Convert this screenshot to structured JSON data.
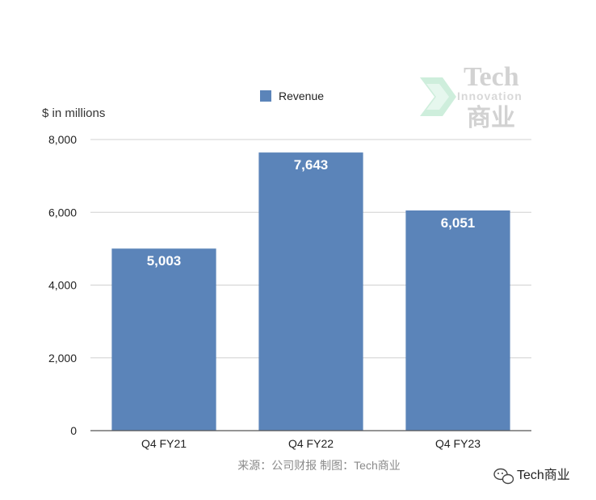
{
  "chart_data": {
    "type": "bar",
    "categories": [
      "Q4 FY21",
      "Q4 FY22",
      "Q4 FY23"
    ],
    "series": [
      {
        "name": "Revenue",
        "values": [
          5003,
          7643,
          6051
        ],
        "color": "#5b84b9"
      }
    ],
    "data_labels": [
      "5,003",
      "7,643",
      "6,051"
    ],
    "y_unit_label": "$ in millions",
    "ylim": [
      0,
      8000
    ],
    "y_ticks": [
      0,
      2000,
      4000,
      6000,
      8000
    ],
    "y_tick_labels": [
      "0",
      "2,000",
      "4,000",
      "6,000",
      "8,000"
    ],
    "grid": true,
    "legend_position": "top-center"
  },
  "source_note": "来源：公司财报 制图：Tech商业",
  "watermark": {
    "line1": "Tech",
    "line2": "Innovation",
    "line3": "商业"
  },
  "account_badge": {
    "icon": "wechat-icon",
    "text": "Tech商业"
  }
}
